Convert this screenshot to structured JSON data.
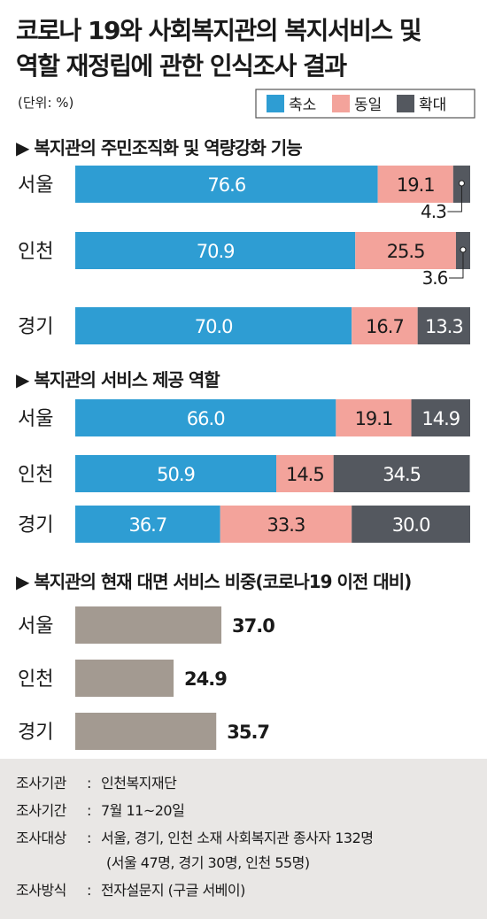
{
  "title_line1": "코로나 19와 사회복지관의 복지서비스 및",
  "title_line2": "역할 재정립에 관한 인식조사 결과",
  "unit": "(단위: %)",
  "colors": {
    "shrink": "#2E9DD3",
    "same": "#F3A39B",
    "expand": "#54585F",
    "face": "#A39A91",
    "footer_bg": "#E9E7E5"
  },
  "chart_data": [
    {
      "type": "bar",
      "stacked": true,
      "orientation": "horizontal",
      "title": "▶ 복지관의 주민조직화 및 역량강화 기능",
      "categories": [
        "서울",
        "인천",
        "경기"
      ],
      "series": [
        {
          "name": "축소",
          "values": [
            76.6,
            70.9,
            70.0
          ]
        },
        {
          "name": "동일",
          "values": [
            19.1,
            25.5,
            16.7
          ]
        },
        {
          "name": "확대",
          "values": [
            4.3,
            3.6,
            13.3
          ]
        }
      ],
      "labels": [
        [
          "76.6",
          "19.1",
          "4.3"
        ],
        [
          "70.9",
          "25.5",
          "3.6"
        ],
        [
          "70.0",
          "16.7",
          "13.3"
        ]
      ],
      "legend": {
        "position": "top-right",
        "entries": [
          "축소",
          "동일",
          "확대"
        ]
      },
      "xlim": [
        0,
        100
      ]
    },
    {
      "type": "bar",
      "stacked": true,
      "orientation": "horizontal",
      "title": "▶ 복지관의 서비스 제공 역할",
      "categories": [
        "서울",
        "인천",
        "경기"
      ],
      "series": [
        {
          "name": "축소",
          "values": [
            66.0,
            50.9,
            36.7
          ]
        },
        {
          "name": "동일",
          "values": [
            19.1,
            14.5,
            33.3
          ]
        },
        {
          "name": "확대",
          "values": [
            14.9,
            34.5,
            30.0
          ]
        }
      ],
      "labels": [
        [
          "66.0",
          "19.1",
          "14.9"
        ],
        [
          "50.9",
          "14.5",
          "34.5"
        ],
        [
          "36.7",
          "33.3",
          "30.0"
        ]
      ],
      "xlim": [
        0,
        100
      ]
    },
    {
      "type": "bar",
      "orientation": "horizontal",
      "title": "▶ 복지관의 현재 대면 서비스 비중(코로나19 이전 대비)",
      "categories": [
        "서울",
        "인천",
        "경기"
      ],
      "values": [
        37.0,
        24.9,
        35.7
      ],
      "labels": [
        "37.0",
        "24.9",
        "35.7"
      ],
      "xlim": [
        0,
        100
      ]
    }
  ],
  "footer": [
    {
      "key": "조사기관",
      "value": "인천복지재단"
    },
    {
      "key": "조사기간",
      "value": "7월 11~20일"
    },
    {
      "key": "조사대상",
      "value": "서울, 경기, 인천 소재 사회복지관 종사자 132명"
    },
    {
      "key": "",
      "value": "(서울 47명, 경기 30명, 인천 55명)"
    },
    {
      "key": "조사방식",
      "value": "전자설문지 (구글 서베이)"
    }
  ]
}
